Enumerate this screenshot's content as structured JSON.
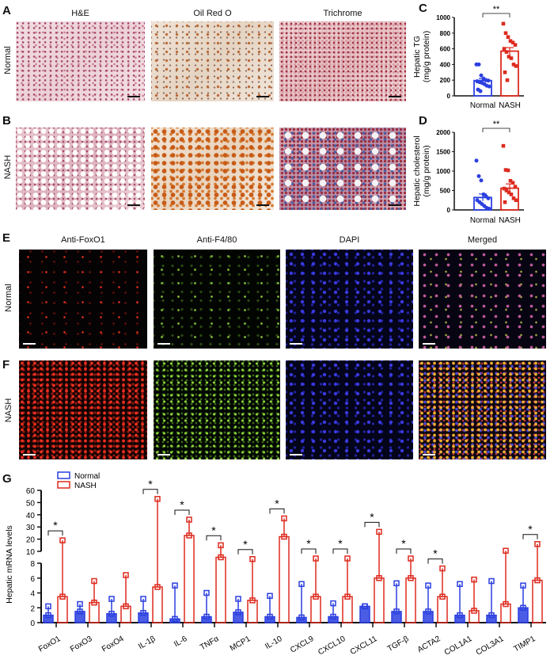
{
  "panels": {
    "A": {
      "letter": "A",
      "columns": [
        "H&E",
        "Oil Red O",
        "Trichrome"
      ],
      "row_label": "Normal"
    },
    "B": {
      "letter": "B",
      "row_label": "NASH"
    },
    "E": {
      "letter": "E",
      "columns": [
        "Anti-FoxO1",
        "Anti-F4/80",
        "DAPI",
        "Merged"
      ],
      "row_label": "Normal"
    },
    "F": {
      "letter": "F",
      "row_label": "NASH"
    },
    "C": {
      "letter": "C"
    },
    "D": {
      "letter": "D"
    },
    "G": {
      "letter": "G"
    }
  },
  "colors": {
    "normal": "#2b3fe0",
    "nash": "#dd2a1e"
  },
  "chart_data": [
    {
      "id": "C",
      "type": "bar",
      "ylabel": [
        "Hepatic TG",
        "(mg/g protein)"
      ],
      "categories": [
        "Normal",
        "NASH"
      ],
      "ylim": [
        0,
        1000
      ],
      "yticks": [
        0,
        200,
        400,
        600,
        800,
        1000
      ],
      "significance": "**",
      "series": [
        {
          "values_mean": 195,
          "sem": 25,
          "points": [
            400,
            400,
            260,
            220,
            200,
            195,
            185,
            175,
            165,
            150,
            130,
            120,
            80,
            60
          ],
          "marker": "circle"
        },
        {
          "values_mean": 570,
          "sem": 45,
          "points": [
            920,
            800,
            750,
            700,
            680,
            650,
            600,
            560,
            500,
            480,
            400,
            380,
            300,
            200
          ],
          "marker": "square"
        }
      ]
    },
    {
      "id": "D",
      "type": "bar",
      "ylabel": [
        "Hepatic cholesterol",
        "(mg/g protein)"
      ],
      "categories": [
        "Normal",
        "NASH"
      ],
      "ylim": [
        0,
        2000
      ],
      "yticks": [
        0,
        500,
        1000,
        1500,
        2000
      ],
      "significance": "**",
      "series": [
        {
          "values_mean": 320,
          "sem": 90,
          "points": [
            1270,
            870,
            760,
            400,
            350,
            300,
            250,
            200,
            150,
            100,
            50,
            30
          ],
          "marker": "circle"
        },
        {
          "values_mean": 560,
          "sem": 110,
          "points": [
            1650,
            1030,
            1020,
            750,
            700,
            600,
            550,
            500,
            450,
            400,
            300,
            250,
            200
          ],
          "marker": "square"
        }
      ]
    },
    {
      "id": "G",
      "type": "bar",
      "ylabel": "Hepatic mRNA levels",
      "legend": {
        "position": "top-left",
        "entries": [
          "Normal",
          "NASH"
        ]
      },
      "yaxis": "broken",
      "yticks_lower": [
        0,
        2,
        4,
        6,
        8
      ],
      "yticks_upper": [
        10,
        20,
        30,
        40,
        50,
        60
      ],
      "categories": [
        "FoxO1",
        "FoxO3",
        "FoxO4",
        "IL-1β",
        "IL-6",
        "TNFα",
        "MCP1",
        "IL-10",
        "CXCL9",
        "CXCL10",
        "CXCL11",
        "TGF-β",
        "ACTA2",
        "COL1A1",
        "COL3A1",
        "TIMP1"
      ],
      "series": [
        {
          "name": "Normal",
          "mean": [
            1.0,
            1.5,
            1.2,
            1.3,
            0.5,
            0.8,
            1.4,
            0.8,
            0.7,
            0.8,
            2.2,
            1.5,
            1.5,
            1.0,
            1.0,
            2.0
          ],
          "max": [
            2.2,
            2.5,
            3.2,
            3.2,
            5.0,
            4.0,
            3.2,
            3.6,
            5.2,
            2.6,
            2.2,
            5.3,
            5.0,
            5.2,
            5.6,
            5.0
          ]
        },
        {
          "name": "NASH",
          "mean": [
            3.5,
            2.7,
            2.2,
            4.8,
            23,
            9.0,
            3.0,
            22,
            3.5,
            3.5,
            6.0,
            6.0,
            3.5,
            1.6,
            2.5,
            5.7
          ],
          "max": [
            19,
            5.6,
            6.4,
            53,
            36,
            15,
            8.7,
            37,
            8.8,
            8.8,
            26,
            8.8,
            7.3,
            5.8,
            10.5,
            16
          ]
        }
      ],
      "significance": [
        "*",
        "",
        "",
        "*",
        "*",
        "*",
        "*",
        "*",
        "*",
        "*",
        "*",
        "*",
        "*",
        "",
        "",
        "*"
      ]
    }
  ]
}
